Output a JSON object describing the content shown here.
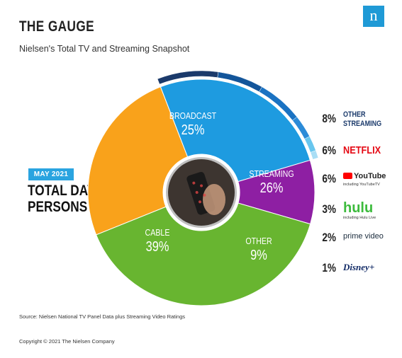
{
  "header": {
    "title": "THE GAUGE",
    "subtitle": "Nielsen's Total TV and Streaming Snapshot",
    "logo_letter": "n"
  },
  "sidebar_block": {
    "date_badge": "MAY 2021",
    "headline_line1": "TOTAL DAY",
    "headline_line2": "PERSONS 2+"
  },
  "chart_data": {
    "type": "pie",
    "slices": [
      {
        "label": "BROADCAST",
        "value": 25,
        "display": "25%",
        "color": "#f9a21b"
      },
      {
        "label": "STREAMING",
        "value": 26,
        "display": "26%",
        "color": "#1e9be0"
      },
      {
        "label": "OTHER",
        "value": 9,
        "display": "9%",
        "color": "#8e1fa3"
      },
      {
        "label": "CABLE",
        "value": 39,
        "display": "39%",
        "color": "#68b530"
      }
    ],
    "streaming_breakdown": [
      {
        "label": "OTHER STREAMING",
        "name_line1": "OTHER",
        "name_line2": "STREAMING",
        "value": 8,
        "display": "8%",
        "color": "#1b3a6b"
      },
      {
        "label": "NETFLIX",
        "value": 6,
        "display": "6%",
        "color": "#13559a"
      },
      {
        "label": "YouTube",
        "sublabel": "including YouTubeTV",
        "value": 6,
        "display": "6%",
        "color": "#1a72c2"
      },
      {
        "label": "hulu",
        "sublabel": "including Hulu Live",
        "value": 3,
        "display": "3%",
        "color": "#2b8bd8"
      },
      {
        "label": "prime video",
        "value": 2,
        "display": "2%",
        "color": "#68c6ee"
      },
      {
        "label": "Disney+",
        "value": 1,
        "display": "1%",
        "color": "#a9def5"
      }
    ]
  },
  "footer": {
    "source": "Source: Nielsen National TV Panel Data plus Streaming Video Ratings",
    "copyright": "Copyright © 2021 The Nielsen Company"
  }
}
